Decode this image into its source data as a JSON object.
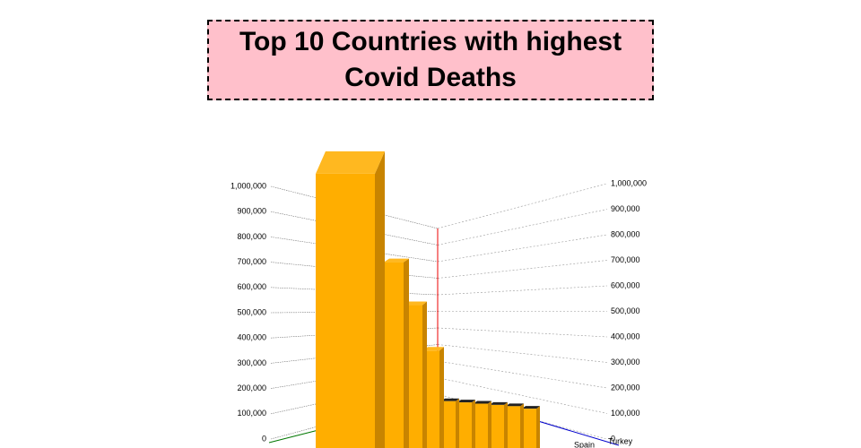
{
  "chart_data": {
    "type": "bar3d",
    "title": "Top 10 Countries with highest Covid Deaths",
    "categories": [
      null,
      null,
      null,
      null,
      null,
      null,
      null,
      null,
      "Spain",
      "Turkey"
    ],
    "values": [
      1050000,
      700000,
      530000,
      350000,
      150000,
      145000,
      140000,
      135000,
      130000,
      120000
    ],
    "color": "#ffae00",
    "ylim": [
      0,
      1000000
    ],
    "yticks": [
      0,
      {
        "value": 100000,
        "label": "100,000"
      },
      {
        "value": 200000,
        "label": "200,000"
      },
      {
        "value": 300000,
        "label": "300,000"
      },
      {
        "value": 400000,
        "label": "400,000"
      },
      {
        "value": 500000,
        "label": "500,000"
      },
      {
        "value": 600000,
        "label": "600,000"
      },
      {
        "value": 700000,
        "label": "700,000"
      },
      {
        "value": 800000,
        "label": "800,000"
      },
      {
        "value": 900000,
        "label": "900,000"
      },
      {
        "value": 1000000,
        "label": "1,000,000"
      }
    ],
    "grid": true
  }
}
